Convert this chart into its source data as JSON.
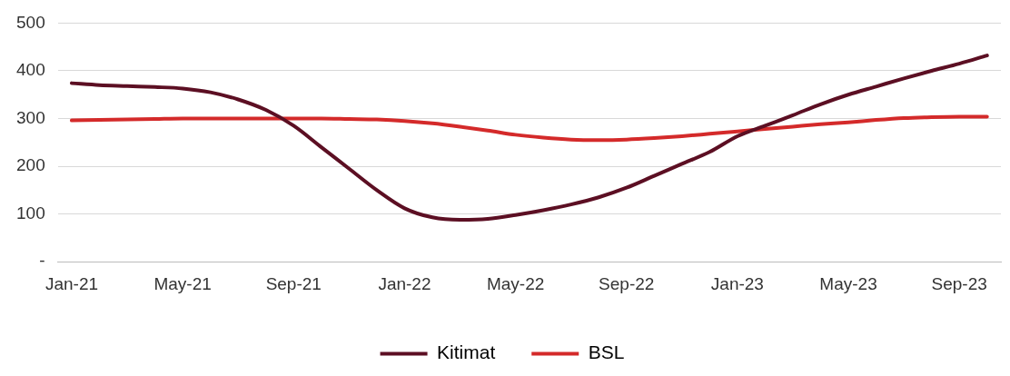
{
  "chart_data": {
    "type": "line",
    "categories": [
      "Jan-21",
      null,
      null,
      null,
      "May-21",
      null,
      null,
      null,
      "Sep-21",
      null,
      null,
      null,
      "Jan-22",
      null,
      null,
      null,
      "May-22",
      null,
      null,
      null,
      "Sep-22",
      null,
      null,
      null,
      "Jan-23",
      null,
      null,
      null,
      "May-23",
      null,
      null,
      null,
      "Sep-23",
      null
    ],
    "series": [
      {
        "name": "Kitimat",
        "color": "#5c0f23",
        "values": [
          374,
          370,
          368,
          366,
          363,
          355,
          340,
          318,
          285,
          240,
          195,
          150,
          112,
          93,
          88,
          90,
          98,
          108,
          120,
          135,
          155,
          180,
          205,
          230,
          263,
          285,
          307,
          330,
          350,
          367,
          384,
          400,
          415,
          432
        ]
      },
      {
        "name": "BSL",
        "color": "#d42a2a",
        "values": [
          296,
          297,
          298,
          299,
          300,
          300,
          300,
          300,
          300,
          300,
          299,
          298,
          295,
          290,
          283,
          275,
          266,
          260,
          256,
          255,
          256,
          259,
          263,
          268,
          273,
          278,
          283,
          288,
          292,
          297,
          301,
          303,
          304,
          304
        ]
      }
    ],
    "ylim": [
      0,
      500
    ],
    "yticks": [
      {
        "value": 0,
        "label": "-"
      },
      100,
      200,
      300,
      400,
      500
    ],
    "grid": "y",
    "legend": "bottom",
    "marker": "none",
    "line_style": "solid"
  }
}
